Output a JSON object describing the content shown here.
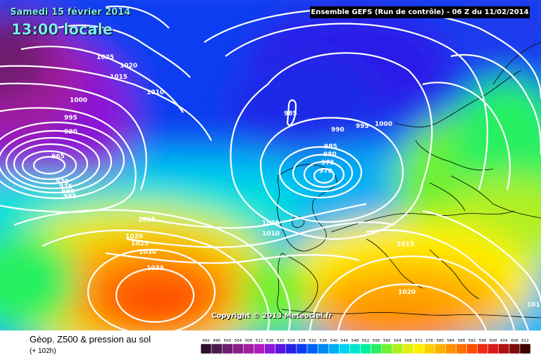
{
  "header": {
    "date": "Samedi 15 février 2014",
    "time": "13:00 locale",
    "run": "Ensemble GEFS (Run de contrôle)  -  06 Z du 11/02/2014"
  },
  "copyright": "Copyright © 2013 Meteociel.fr",
  "footer": {
    "title": "Géop. Z500 & pression au sol",
    "subtitle": "(+ 102h)"
  },
  "isobar_labels": [
    "1025",
    "1020",
    "1015",
    "1010",
    "1000",
    "995",
    "990",
    "965",
    "970",
    "975",
    "980",
    "985",
    "985",
    "990",
    "995",
    "1000",
    "985",
    "980",
    "975",
    "970",
    "1015",
    "1005",
    "1010",
    "1020",
    "1025",
    "1030",
    "1035",
    "1015",
    "1020",
    "101"
  ],
  "legend": {
    "values": [
      "492",
      "496",
      "500",
      "504",
      "508",
      "512",
      "516",
      "520",
      "524",
      "528",
      "532",
      "536",
      "540",
      "544",
      "548",
      "552",
      "556",
      "560",
      "564",
      "568",
      "572",
      "576",
      "580",
      "584",
      "588",
      "592",
      "596",
      "600",
      "604",
      "608",
      "612"
    ],
    "colors": [
      "#2d0f2d",
      "#4b1a4b",
      "#6e1e6e",
      "#8a1e8a",
      "#a01fa0",
      "#b11cbf",
      "#8a18d6",
      "#5a16e0",
      "#2a1fe8",
      "#0a3cf0",
      "#0062f5",
      "#0088f5",
      "#00aef5",
      "#00d2f2",
      "#00e6d0",
      "#00f0a0",
      "#28f060",
      "#70f030",
      "#b0f020",
      "#e0f010",
      "#fff000",
      "#ffd000",
      "#ffb000",
      "#ff9000",
      "#ff7000",
      "#ff4d00",
      "#f02a10",
      "#d81a1a",
      "#b01010",
      "#800a0a",
      "#400000"
    ]
  },
  "colors": {
    "accent_text": "#7fe9ff",
    "isobar": "#ffffff"
  }
}
